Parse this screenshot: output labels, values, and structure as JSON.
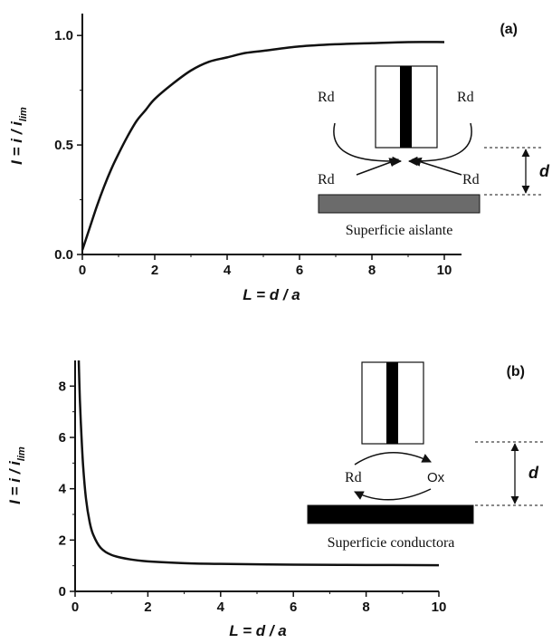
{
  "chart_data": [
    {
      "type": "line",
      "panel_label": "(a)",
      "ylabel": {
        "lead": "I = i / i",
        "sub": "lim"
      },
      "xlabel": "L = d / a",
      "xlim": [
        0,
        10
      ],
      "ylim": [
        0,
        1.1
      ],
      "xticks": [
        "0",
        "2",
        "4",
        "6",
        "8",
        "10"
      ],
      "yticks": [
        "0.0",
        "0.5",
        "1.0"
      ],
      "series": [
        {
          "x": [
            0,
            0.2,
            0.4,
            0.6,
            0.8,
            1.0,
            1.25,
            1.5,
            1.75,
            2.0,
            2.5,
            3.0,
            3.5,
            4.0,
            4.5,
            5.0,
            6.0,
            7.0,
            8.0,
            9.0,
            10.0
          ],
          "y": [
            0.02,
            0.12,
            0.22,
            0.31,
            0.39,
            0.46,
            0.54,
            0.61,
            0.66,
            0.71,
            0.78,
            0.84,
            0.88,
            0.9,
            0.92,
            0.93,
            0.95,
            0.96,
            0.965,
            0.97,
            0.97
          ]
        }
      ],
      "inset": {
        "labels": [
          "Rd",
          "Rd",
          "Rd",
          "Rd"
        ],
        "surface": "Superficie aislante",
        "dimension": "d",
        "surface_color": "#6b6b6b"
      }
    },
    {
      "type": "line",
      "panel_label": "(b)",
      "ylabel": {
        "lead": "I = i / i",
        "sub": "lim"
      },
      "xlabel": "L = d / a",
      "xlim": [
        0,
        10
      ],
      "ylim": [
        0,
        9
      ],
      "xticks": [
        "0",
        "2",
        "4",
        "6",
        "8",
        "10"
      ],
      "yticks": [
        "0",
        "2",
        "4",
        "6",
        "8"
      ],
      "series": [
        {
          "x": [
            0.1,
            0.13,
            0.17,
            0.22,
            0.3,
            0.4,
            0.5,
            0.7,
            1.0,
            1.5,
            2.0,
            3.0,
            4.0,
            6.0,
            8.0,
            10.0
          ],
          "y": [
            9.0,
            7.5,
            6.2,
            4.9,
            3.6,
            2.7,
            2.2,
            1.7,
            1.42,
            1.25,
            1.17,
            1.1,
            1.07,
            1.04,
            1.03,
            1.02
          ]
        }
      ],
      "inset": {
        "labels": [
          "Rd",
          "Ox"
        ],
        "surface": "Superficie conductora",
        "dimension": "d",
        "surface_color": "#000000"
      }
    }
  ]
}
